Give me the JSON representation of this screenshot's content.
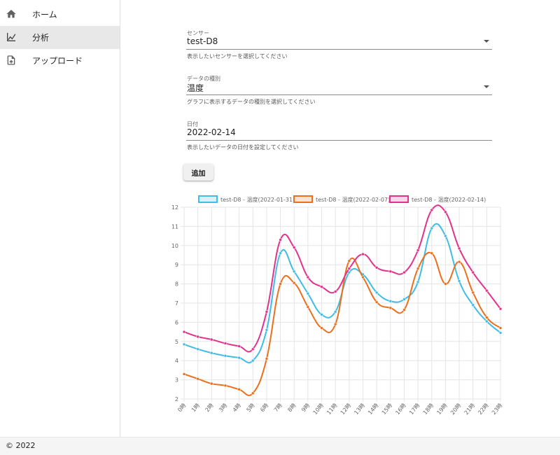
{
  "sidebar": {
    "items": [
      {
        "label": "ホーム",
        "icon": "home-icon",
        "active": false
      },
      {
        "label": "分析",
        "icon": "analytics-chart-icon",
        "active": true
      },
      {
        "label": "アップロード",
        "icon": "upload-file-icon",
        "active": false
      }
    ]
  },
  "form": {
    "sensor": {
      "label": "センサー",
      "value": "test-D8",
      "helper": "表示したいセンサーを選択してください"
    },
    "data_type": {
      "label": "データの種別",
      "value": "温度",
      "helper": "グラフに表示するデータの種別を選択してください"
    },
    "date": {
      "label": "日付",
      "value": "2022-02-14",
      "helper": "表示したいデータの日付を設定してください"
    },
    "add_label": "追加"
  },
  "footer": {
    "text": "© 2022"
  },
  "chart_data": {
    "type": "line",
    "x": [
      "0時",
      "1時",
      "2時",
      "3時",
      "4時",
      "5時",
      "6時",
      "7時",
      "8時",
      "9時",
      "10時",
      "11時",
      "12時",
      "13時",
      "14時",
      "15時",
      "16時",
      "17時",
      "18時",
      "19時",
      "20時",
      "21時",
      "22時",
      "23時"
    ],
    "ylim": [
      2,
      12
    ],
    "yticks": [
      2,
      3,
      4,
      5,
      6,
      7,
      8,
      9,
      10,
      11,
      12
    ],
    "grid": true,
    "legend_position": "top",
    "series": [
      {
        "name": "test-D8 - 温度(2022-01-31)",
        "color": "#3fbde4",
        "values": [
          4.85,
          4.6,
          4.4,
          4.25,
          4.15,
          4.0,
          5.6,
          9.6,
          8.65,
          7.5,
          6.4,
          6.55,
          8.6,
          8.5,
          7.55,
          7.1,
          7.2,
          8.1,
          10.9,
          10.5,
          8.15,
          6.9,
          6.05,
          5.45
        ]
      },
      {
        "name": "test-D8 - 温度(2022-02-07)",
        "color": "#ec6f1b",
        "values": [
          3.3,
          3.05,
          2.8,
          2.7,
          2.5,
          2.3,
          4.1,
          8.0,
          8.05,
          6.8,
          5.7,
          5.9,
          9.2,
          8.35,
          7.05,
          6.75,
          6.65,
          8.8,
          9.6,
          8.0,
          9.15,
          7.55,
          6.25,
          5.7
        ]
      },
      {
        "name": "test-D8 - 温度(2022-02-14)",
        "color": "#e4328c",
        "values": [
          5.5,
          5.25,
          5.1,
          4.9,
          4.75,
          4.6,
          6.55,
          10.3,
          9.9,
          8.35,
          7.85,
          7.6,
          8.8,
          9.55,
          8.85,
          8.65,
          8.6,
          9.75,
          11.85,
          11.75,
          9.85,
          8.6,
          7.65,
          6.7
        ]
      }
    ]
  }
}
